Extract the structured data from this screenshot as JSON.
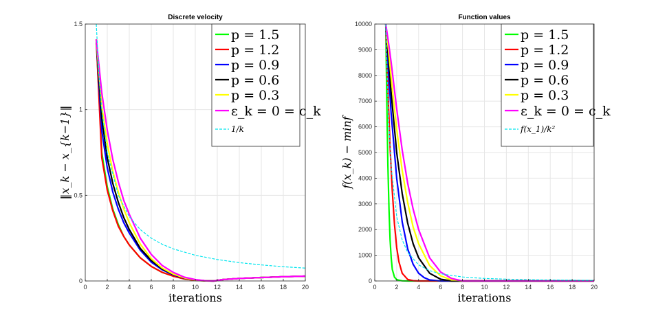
{
  "chart_data": [
    {
      "type": "line",
      "title": "Discrete velocity",
      "xlabel": "iterations",
      "ylabel": "‖x_k − x_{k−1}‖",
      "xlim": [
        0,
        20
      ],
      "ylim": [
        0,
        1.5
      ],
      "xticks": [
        0,
        2,
        4,
        6,
        8,
        10,
        12,
        14,
        16,
        18,
        20
      ],
      "yticks": [
        0,
        0.5,
        1,
        1.5
      ],
      "xtick_labels": [
        "0",
        "2",
        "4",
        "6",
        "8",
        "10",
        "12",
        "14",
        "16",
        "18",
        "20"
      ],
      "ytick_labels": [
        "0",
        "0.5",
        "1",
        "1.5"
      ],
      "grid": true,
      "legend_position": "top-right",
      "series": [
        {
          "name": "p = 1.5",
          "color": "#00ff00",
          "style": "solid",
          "x": [
            1,
            1.5,
            2,
            2.5,
            3,
            3.5,
            4,
            5,
            6,
            7,
            8,
            9,
            10,
            11,
            11.7,
            12.5,
            14,
            16,
            18,
            20
          ],
          "y": [
            1.41,
            0.75,
            0.55,
            0.42,
            0.33,
            0.26,
            0.21,
            0.135,
            0.085,
            0.05,
            0.028,
            0.012,
            0.004,
            0.0005,
            0.0,
            0.008,
            0.015,
            0.02,
            0.025,
            0.028
          ]
        },
        {
          "name": "p = 1.2",
          "color": "#ff0000",
          "style": "solid",
          "x": [
            1,
            1.5,
            2,
            2.5,
            3,
            3.5,
            4,
            5,
            6,
            7,
            8,
            9,
            10,
            11,
            11.7,
            12.5,
            14,
            16,
            18,
            20
          ],
          "y": [
            1.41,
            0.72,
            0.53,
            0.41,
            0.32,
            0.26,
            0.21,
            0.135,
            0.085,
            0.05,
            0.028,
            0.012,
            0.004,
            0.0005,
            0.0,
            0.008,
            0.015,
            0.02,
            0.025,
            0.028
          ]
        },
        {
          "name": "p = 0.9",
          "color": "#0000ff",
          "style": "solid",
          "x": [
            1,
            1.5,
            2,
            2.5,
            3,
            3.5,
            4,
            5,
            6,
            7,
            8,
            9,
            10,
            11,
            11.7,
            12.5,
            14,
            16,
            18,
            20
          ],
          "y": [
            1.41,
            0.88,
            0.66,
            0.52,
            0.42,
            0.34,
            0.28,
            0.18,
            0.11,
            0.065,
            0.035,
            0.016,
            0.006,
            0.001,
            0.0,
            0.008,
            0.015,
            0.02,
            0.025,
            0.028
          ]
        },
        {
          "name": "p = 0.6",
          "color": "#000000",
          "style": "solid",
          "x": [
            1,
            1.5,
            2,
            2.5,
            3,
            3.5,
            4,
            5,
            6,
            7,
            8,
            9,
            10,
            11,
            11.7,
            12.5,
            14,
            16,
            18,
            20
          ],
          "y": [
            1.41,
            0.95,
            0.72,
            0.57,
            0.46,
            0.37,
            0.3,
            0.19,
            0.12,
            0.07,
            0.038,
            0.017,
            0.006,
            0.001,
            0.0,
            0.008,
            0.015,
            0.02,
            0.025,
            0.028
          ]
        },
        {
          "name": "p = 0.3",
          "color": "#ffff00",
          "style": "solid",
          "x": [
            1,
            1.5,
            2,
            2.5,
            3,
            3.5,
            4,
            5,
            6,
            7,
            8,
            9,
            10,
            11,
            11.7,
            12.5,
            14,
            16,
            18,
            20
          ],
          "y": [
            1.41,
            1.02,
            0.8,
            0.64,
            0.52,
            0.42,
            0.34,
            0.215,
            0.13,
            0.075,
            0.04,
            0.018,
            0.006,
            0.001,
            0.0,
            0.008,
            0.015,
            0.02,
            0.025,
            0.028
          ]
        },
        {
          "name": "ε_k = 0 = c_k",
          "color": "#ff00ff",
          "style": "solid",
          "x": [
            1,
            1.5,
            2,
            2.5,
            3,
            3.5,
            4,
            5,
            6,
            7,
            8,
            9,
            10,
            11,
            11.7,
            12.5,
            14,
            16,
            18,
            20
          ],
          "y": [
            1.41,
            1.1,
            0.88,
            0.71,
            0.58,
            0.47,
            0.39,
            0.25,
            0.155,
            0.09,
            0.05,
            0.022,
            0.008,
            0.001,
            0.0,
            0.008,
            0.015,
            0.02,
            0.025,
            0.028
          ]
        },
        {
          "name": "1/k",
          "color": "#00e5ee",
          "style": "dashed",
          "x": [
            1,
            1.25,
            1.5,
            2,
            3,
            4,
            5,
            6,
            7,
            8,
            10,
            12,
            14,
            16,
            18,
            20
          ],
          "y": [
            1.5,
            1.2,
            1.0,
            0.75,
            0.5,
            0.375,
            0.3,
            0.25,
            0.214,
            0.1875,
            0.15,
            0.125,
            0.107,
            0.094,
            0.083,
            0.075
          ]
        }
      ]
    },
    {
      "type": "line",
      "title": "Function values",
      "xlabel": "iterations",
      "ylabel": "f(x_k) − minf",
      "xlim": [
        0,
        20
      ],
      "ylim": [
        0,
        10000
      ],
      "xticks": [
        0,
        2,
        4,
        6,
        8,
        10,
        12,
        14,
        16,
        18,
        20
      ],
      "yticks": [
        0,
        1000,
        2000,
        3000,
        4000,
        5000,
        6000,
        7000,
        8000,
        9000,
        10000
      ],
      "xtick_labels": [
        "0",
        "2",
        "4",
        "6",
        "8",
        "10",
        "12",
        "14",
        "16",
        "18",
        "20"
      ],
      "ytick_labels": [
        "0",
        "1000",
        "2000",
        "3000",
        "4000",
        "5000",
        "6000",
        "7000",
        "8000",
        "9000",
        "10000"
      ],
      "grid": true,
      "legend_position": "top-right",
      "series": [
        {
          "name": "p = 1.5",
          "color": "#00ff00",
          "style": "solid",
          "x": [
            1,
            1.1,
            1.2,
            1.3,
            1.4,
            1.5,
            1.6,
            1.8,
            2,
            2.5,
            3,
            20
          ],
          "y": [
            10000,
            7000,
            4500,
            2800,
            1600,
            900,
            450,
            150,
            50,
            5,
            0,
            0
          ]
        },
        {
          "name": "p = 1.2",
          "color": "#ff0000",
          "style": "solid",
          "x": [
            1,
            1.2,
            1.4,
            1.6,
            1.8,
            2,
            2.2,
            2.5,
            3,
            3.5,
            4,
            20
          ],
          "y": [
            10000,
            7500,
            5200,
            3500,
            2200,
            1300,
            750,
            300,
            60,
            10,
            0,
            0
          ]
        },
        {
          "name": "p = 0.9",
          "color": "#0000ff",
          "style": "solid",
          "x": [
            1,
            1.25,
            1.5,
            2,
            2.5,
            3,
            3.5,
            4,
            4.5,
            5,
            6,
            20
          ],
          "y": [
            10000,
            8200,
            6500,
            4000,
            2300,
            1250,
            650,
            300,
            130,
            40,
            0,
            0
          ]
        },
        {
          "name": "p = 0.6",
          "color": "#000000",
          "style": "solid",
          "x": [
            1,
            1.25,
            1.5,
            2,
            2.5,
            3,
            3.5,
            4,
            5,
            6,
            7,
            20
          ],
          "y": [
            10000,
            8700,
            7300,
            5000,
            3400,
            2250,
            1450,
            900,
            300,
            70,
            0,
            0
          ]
        },
        {
          "name": "p = 0.3",
          "color": "#ffff00",
          "style": "solid",
          "x": [
            1,
            1.25,
            1.5,
            2,
            2.5,
            3,
            3.5,
            4,
            5,
            6,
            7,
            8,
            20
          ],
          "y": [
            10000,
            9000,
            7900,
            5900,
            4300,
            3050,
            2100,
            1450,
            600,
            200,
            40,
            0,
            0
          ]
        },
        {
          "name": "ε_k = 0 = c_k",
          "color": "#ff00ff",
          "style": "solid",
          "x": [
            1,
            1.25,
            1.5,
            2,
            2.5,
            3,
            3.5,
            4,
            5,
            6,
            7,
            8,
            20
          ],
          "y": [
            10000,
            9300,
            8500,
            6700,
            5100,
            3800,
            2800,
            2000,
            900,
            350,
            100,
            0,
            0
          ]
        },
        {
          "name": "f(x_1)/k²",
          "color": "#00e5ee",
          "style": "dashed",
          "x": [
            1,
            1.25,
            1.5,
            2,
            2.5,
            3,
            4,
            5,
            6,
            8,
            10,
            12,
            15,
            20
          ],
          "y": [
            10000,
            6400,
            4444,
            2500,
            1600,
            1111,
            625,
            400,
            278,
            156,
            100,
            69,
            44,
            25
          ]
        }
      ]
    }
  ]
}
